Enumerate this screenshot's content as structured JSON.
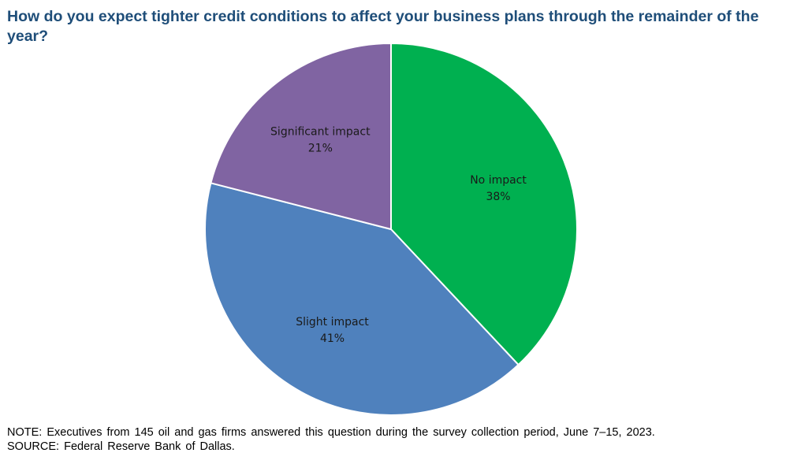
{
  "chart_data": {
    "type": "pie",
    "title": "How do you expect tighter credit conditions to affect your business plans through the remainder of the year?",
    "slices": [
      {
        "label": "No impact",
        "value": 38,
        "value_label": "38%",
        "color": "#00b050"
      },
      {
        "label": "Slight impact",
        "value": 41,
        "value_label": "41%",
        "color": "#4f81bd"
      },
      {
        "label": "Significant impact",
        "value": 21,
        "value_label": "21%",
        "color": "#8064a2"
      }
    ],
    "start_angle": "12 o'clock",
    "direction": "clockwise",
    "legend": "none"
  },
  "note": "NOTE:  Executives  from 145 oil and gas firms answered this question during the survey collection period, June 7–15, 2023.",
  "source": "SOURCE:  Federal Reserve Bank of Dallas."
}
